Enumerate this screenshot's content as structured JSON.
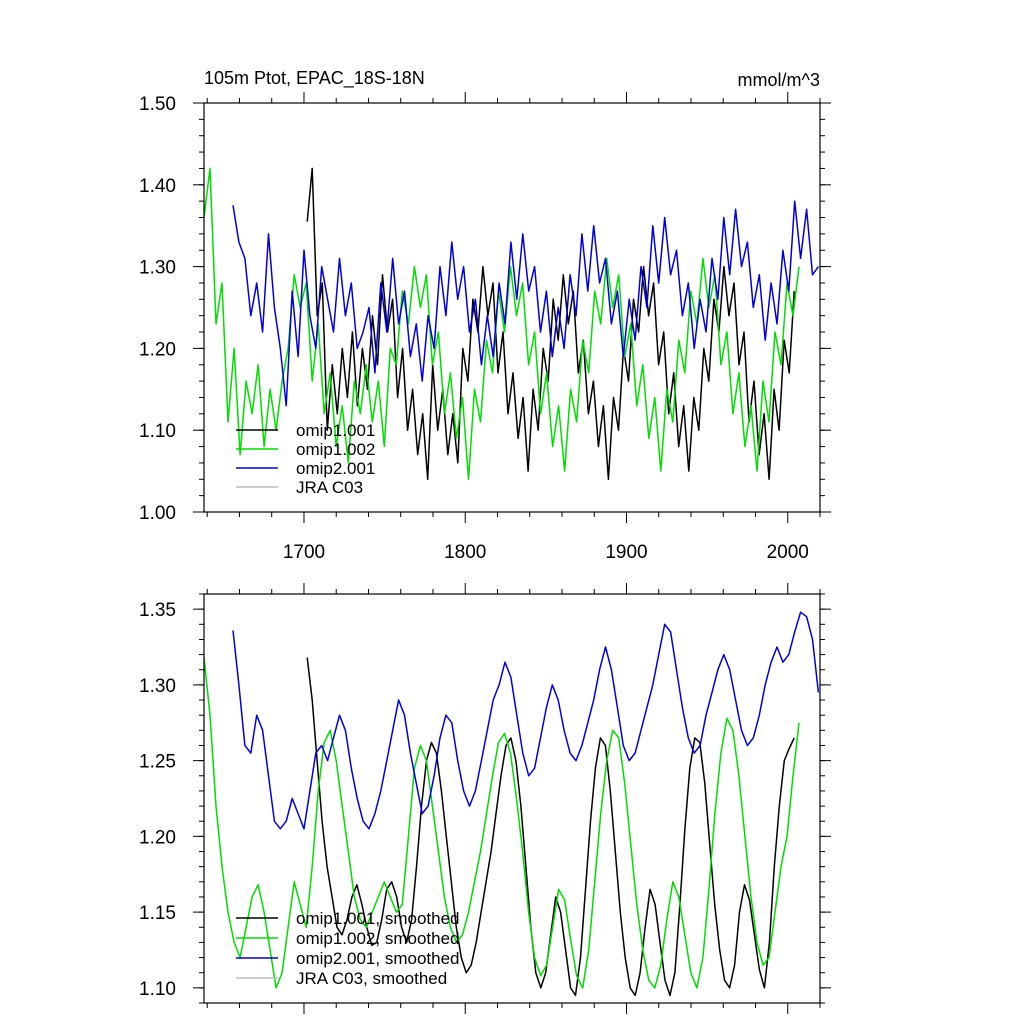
{
  "chart_data": [
    {
      "type": "line",
      "title_left": "105m Ptot, EPAC_18S-18N",
      "title_right": "mmol/m^3",
      "xlabel": "",
      "ylabel": "",
      "xlim": [
        1638,
        2020
      ],
      "ylim": [
        1.0,
        1.5
      ],
      "x_ticks": [
        1700,
        1800,
        1900,
        2000
      ],
      "x_tick_labels": [
        "1700",
        "1800",
        "1900",
        "2000"
      ],
      "y_ticks": [
        1.0,
        1.1,
        1.2,
        1.3,
        1.4,
        1.5
      ],
      "y_tick_labels": [
        "1.00",
        "1.10",
        "1.20",
        "1.30",
        "1.40",
        "1.50"
      ],
      "grid": false,
      "legend_position": "lower-left",
      "series": [
        {
          "name": "omip1.001",
          "color": "#000000",
          "x_start": 1702,
          "x_end": 2004,
          "values": [
            1.355,
            1.42,
            1.24,
            1.28,
            1.1,
            1.18,
            1.12,
            1.2,
            1.14,
            1.22,
            1.13,
            1.2,
            1.15,
            1.24,
            1.18,
            1.29,
            1.22,
            1.26,
            1.14,
            1.2,
            1.1,
            1.15,
            1.07,
            1.12,
            1.04,
            1.18,
            1.1,
            1.15,
            1.07,
            1.12,
            1.06,
            1.2,
            1.16,
            1.26,
            1.22,
            1.3,
            1.24,
            1.28,
            1.17,
            1.22,
            1.12,
            1.17,
            1.09,
            1.14,
            1.05,
            1.15,
            1.1,
            1.2,
            1.16,
            1.26,
            1.21,
            1.29,
            1.23,
            1.27,
            1.17,
            1.21,
            1.12,
            1.16,
            1.08,
            1.13,
            1.04,
            1.14,
            1.1,
            1.2,
            1.16,
            1.26,
            1.22,
            1.3,
            1.24,
            1.28,
            1.18,
            1.22,
            1.12,
            1.17,
            1.08,
            1.13,
            1.05,
            1.14,
            1.1,
            1.2,
            1.16,
            1.26,
            1.22,
            1.3,
            1.24,
            1.28,
            1.18,
            1.22,
            1.11,
            1.16,
            1.07,
            1.12,
            1.04,
            1.15,
            1.1,
            1.21,
            1.17,
            1.27
          ]
        },
        {
          "name": "omip1.002",
          "color": "#00dd00",
          "x_start": 1638,
          "x_end": 2007,
          "values": [
            1.36,
            1.42,
            1.23,
            1.28,
            1.11,
            1.2,
            1.07,
            1.16,
            1.12,
            1.18,
            1.08,
            1.15,
            1.1,
            1.16,
            1.2,
            1.29,
            1.25,
            1.28,
            1.16,
            1.23,
            1.12,
            1.17,
            1.08,
            1.13,
            1.06,
            1.16,
            1.12,
            1.18,
            1.11,
            1.16,
            1.08,
            1.2,
            1.18,
            1.27,
            1.23,
            1.3,
            1.25,
            1.29,
            1.18,
            1.22,
            1.12,
            1.17,
            1.09,
            1.14,
            1.04,
            1.15,
            1.11,
            1.21,
            1.17,
            1.27,
            1.22,
            1.3,
            1.24,
            1.28,
            1.18,
            1.22,
            1.12,
            1.17,
            1.08,
            1.13,
            1.05,
            1.15,
            1.11,
            1.21,
            1.17,
            1.27,
            1.23,
            1.31,
            1.25,
            1.29,
            1.19,
            1.23,
            1.13,
            1.18,
            1.09,
            1.14,
            1.05,
            1.15,
            1.11,
            1.21,
            1.17,
            1.27,
            1.23,
            1.31,
            1.25,
            1.29,
            1.18,
            1.22,
            1.12,
            1.17,
            1.08,
            1.13,
            1.05,
            1.16,
            1.11,
            1.22,
            1.18,
            1.28,
            1.24,
            1.3
          ]
        },
        {
          "name": "omip2.001",
          "color": "#0000dd",
          "x_start": 1656,
          "x_end": 2019,
          "values": [
            1.375,
            1.33,
            1.31,
            1.24,
            1.28,
            1.22,
            1.34,
            1.25,
            1.2,
            1.13,
            1.27,
            1.19,
            1.32,
            1.24,
            1.2,
            1.3,
            1.26,
            1.22,
            1.31,
            1.24,
            1.28,
            1.2,
            1.22,
            1.25,
            1.17,
            1.28,
            1.22,
            1.31,
            1.23,
            1.27,
            1.19,
            1.23,
            1.16,
            1.24,
            1.2,
            1.3,
            1.24,
            1.33,
            1.26,
            1.3,
            1.22,
            1.26,
            1.18,
            1.24,
            1.19,
            1.28,
            1.23,
            1.33,
            1.26,
            1.34,
            1.27,
            1.3,
            1.22,
            1.27,
            1.19,
            1.25,
            1.2,
            1.29,
            1.24,
            1.34,
            1.27,
            1.35,
            1.28,
            1.31,
            1.23,
            1.27,
            1.19,
            1.26,
            1.21,
            1.3,
            1.25,
            1.35,
            1.28,
            1.36,
            1.29,
            1.32,
            1.24,
            1.28,
            1.2,
            1.26,
            1.22,
            1.31,
            1.26,
            1.36,
            1.29,
            1.37,
            1.3,
            1.33,
            1.25,
            1.29,
            1.21,
            1.28,
            1.23,
            1.32,
            1.27,
            1.38,
            1.31,
            1.37,
            1.29,
            1.3
          ]
        },
        {
          "name": "JRA C03",
          "color": "#bbbbbb",
          "values": []
        }
      ]
    },
    {
      "type": "line",
      "xlim": [
        1638,
        2020
      ],
      "ylim": [
        1.09,
        1.36
      ],
      "x_ticks": [
        1700,
        1800,
        1900,
        2000
      ],
      "y_ticks": [
        1.1,
        1.15,
        1.2,
        1.25,
        1.3,
        1.35
      ],
      "y_tick_labels": [
        "1.10",
        "1.15",
        "1.20",
        "1.25",
        "1.30",
        "1.35"
      ],
      "grid": false,
      "legend_position": "lower-left",
      "series": [
        {
          "name": "omip1.001, smoothed",
          "color": "#000000",
          "x_start": 1702,
          "x_end": 2004,
          "values": [
            1.318,
            1.29,
            1.25,
            1.21,
            1.18,
            1.16,
            1.14,
            1.135,
            1.145,
            1.16,
            1.168,
            1.155,
            1.14,
            1.128,
            1.13,
            1.145,
            1.165,
            1.17,
            1.16,
            1.14,
            1.13,
            1.145,
            1.18,
            1.22,
            1.25,
            1.262,
            1.255,
            1.23,
            1.2,
            1.17,
            1.14,
            1.12,
            1.11,
            1.115,
            1.13,
            1.15,
            1.17,
            1.19,
            1.215,
            1.24,
            1.26,
            1.265,
            1.25,
            1.22,
            1.18,
            1.14,
            1.11,
            1.1,
            1.11,
            1.135,
            1.16,
            1.15,
            1.125,
            1.1,
            1.095,
            1.12,
            1.165,
            1.21,
            1.245,
            1.265,
            1.26,
            1.23,
            1.19,
            1.15,
            1.12,
            1.1,
            1.095,
            1.11,
            1.14,
            1.165,
            1.155,
            1.13,
            1.105,
            1.095,
            1.11,
            1.155,
            1.205,
            1.245,
            1.265,
            1.262,
            1.235,
            1.195,
            1.155,
            1.125,
            1.105,
            1.1,
            1.115,
            1.15,
            1.168,
            1.158,
            1.135,
            1.112,
            1.1,
            1.13,
            1.18,
            1.22,
            1.25,
            1.258,
            1.265
          ]
        },
        {
          "name": "omip1.002, smoothed",
          "color": "#00dd00",
          "x_start": 1638,
          "x_end": 2007,
          "values": [
            1.318,
            1.28,
            1.22,
            1.18,
            1.15,
            1.13,
            1.12,
            1.14,
            1.16,
            1.168,
            1.15,
            1.125,
            1.1,
            1.11,
            1.14,
            1.17,
            1.155,
            1.14,
            1.18,
            1.23,
            1.262,
            1.27,
            1.25,
            1.22,
            1.19,
            1.16,
            1.145,
            1.14,
            1.15,
            1.16,
            1.17,
            1.16,
            1.15,
            1.155,
            1.2,
            1.245,
            1.26,
            1.25,
            1.22,
            1.19,
            1.16,
            1.14,
            1.13,
            1.135,
            1.15,
            1.17,
            1.19,
            1.215,
            1.24,
            1.262,
            1.268,
            1.255,
            1.225,
            1.19,
            1.15,
            1.12,
            1.108,
            1.115,
            1.14,
            1.165,
            1.158,
            1.132,
            1.108,
            1.1,
            1.125,
            1.17,
            1.215,
            1.25,
            1.27,
            1.265,
            1.235,
            1.195,
            1.155,
            1.125,
            1.105,
            1.1,
            1.115,
            1.145,
            1.17,
            1.16,
            1.135,
            1.11,
            1.1,
            1.12,
            1.165,
            1.215,
            1.255,
            1.278,
            1.27,
            1.24,
            1.2,
            1.16,
            1.13,
            1.115,
            1.12,
            1.15,
            1.18,
            1.2,
            1.24,
            1.275
          ]
        },
        {
          "name": "omip2.001, smoothed",
          "color": "#0000dd",
          "x_start": 1656,
          "x_end": 2019,
          "values": [
            1.336,
            1.3,
            1.26,
            1.255,
            1.28,
            1.27,
            1.24,
            1.21,
            1.205,
            1.21,
            1.225,
            1.215,
            1.205,
            1.23,
            1.255,
            1.26,
            1.25,
            1.265,
            1.28,
            1.27,
            1.245,
            1.225,
            1.21,
            1.205,
            1.215,
            1.23,
            1.25,
            1.27,
            1.29,
            1.28,
            1.255,
            1.235,
            1.215,
            1.22,
            1.24,
            1.265,
            1.28,
            1.275,
            1.25,
            1.23,
            1.22,
            1.23,
            1.25,
            1.27,
            1.29,
            1.3,
            1.315,
            1.305,
            1.28,
            1.255,
            1.24,
            1.245,
            1.265,
            1.285,
            1.3,
            1.29,
            1.27,
            1.255,
            1.25,
            1.26,
            1.275,
            1.29,
            1.31,
            1.325,
            1.31,
            1.285,
            1.26,
            1.25,
            1.255,
            1.27,
            1.285,
            1.3,
            1.32,
            1.34,
            1.335,
            1.31,
            1.285,
            1.265,
            1.255,
            1.26,
            1.28,
            1.295,
            1.31,
            1.32,
            1.31,
            1.29,
            1.27,
            1.26,
            1.265,
            1.28,
            1.3,
            1.315,
            1.325,
            1.315,
            1.32,
            1.335,
            1.348,
            1.345,
            1.33,
            1.295
          ]
        },
        {
          "name": "JRA C03, smoothed",
          "color": "#bbbbbb",
          "values": []
        }
      ]
    }
  ]
}
